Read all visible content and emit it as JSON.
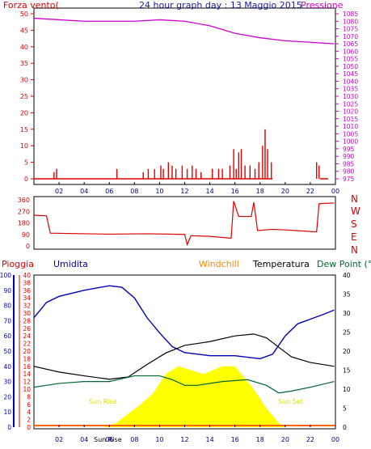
{
  "header": {
    "left_label": "Forza vento(",
    "title": "24 hour graph day : 13 Maggio 2015",
    "right_label": "Pressione"
  },
  "colors": {
    "wind": "#dd0000",
    "pressure": "#cc00cc",
    "humidity": "#0000bb",
    "temperature": "#000000",
    "dewpoint": "#006633",
    "windchill": "#ff8800",
    "sun": "#ffff00",
    "rain_axis": "#dd0000"
  },
  "chart_data": [
    {
      "type": "bar",
      "name": "wind_pressure",
      "title": "24 hour graph day : 13 Maggio 2015",
      "xlabel": "",
      "x_ticks": [
        "02",
        "04",
        "06",
        "08",
        "10",
        "12",
        "14",
        "16",
        "18",
        "20",
        "22",
        "00"
      ],
      "wind_axis_label": "Forza vento(",
      "wind_ylim": [
        0,
        50
      ],
      "wind_ticks": [
        "0",
        "5",
        "10",
        "15",
        "20",
        "25",
        "30",
        "35",
        "40",
        "45",
        "50"
      ],
      "pressure_axis_label": "Pressione",
      "pressure_ylim": [
        975,
        1085
      ],
      "pressure_ticks": [
        "975",
        "980",
        "985",
        "990",
        "995",
        "1000",
        "1005",
        "1010",
        "1015",
        "1020",
        "1025",
        "1030",
        "1035",
        "1040",
        "1045",
        "1050",
        "1055",
        "1060",
        "1065",
        "1070",
        "1075",
        "1080",
        "1085"
      ],
      "wind_gusts": [
        {
          "hour": 1.6,
          "value": 2
        },
        {
          "hour": 1.8,
          "value": 3
        },
        {
          "hour": 6.6,
          "value": 3
        },
        {
          "hour": 8.7,
          "value": 2
        },
        {
          "hour": 9.1,
          "value": 3
        },
        {
          "hour": 9.6,
          "value": 3
        },
        {
          "hour": 10.1,
          "value": 4
        },
        {
          "hour": 10.3,
          "value": 3
        },
        {
          "hour": 10.7,
          "value": 5
        },
        {
          "hour": 11.0,
          "value": 4
        },
        {
          "hour": 11.3,
          "value": 3
        },
        {
          "hour": 11.8,
          "value": 4
        },
        {
          "hour": 12.2,
          "value": 3
        },
        {
          "hour": 12.6,
          "value": 4
        },
        {
          "hour": 12.9,
          "value": 3
        },
        {
          "hour": 13.3,
          "value": 2
        },
        {
          "hour": 14.2,
          "value": 3
        },
        {
          "hour": 14.7,
          "value": 3
        },
        {
          "hour": 15.0,
          "value": 3
        },
        {
          "hour": 15.6,
          "value": 4
        },
        {
          "hour": 15.9,
          "value": 9
        },
        {
          "hour": 16.1,
          "value": 3
        },
        {
          "hour": 16.3,
          "value": 8
        },
        {
          "hour": 16.5,
          "value": 9
        },
        {
          "hour": 16.8,
          "value": 4
        },
        {
          "hour": 17.2,
          "value": 4
        },
        {
          "hour": 17.6,
          "value": 3
        },
        {
          "hour": 17.9,
          "value": 5
        },
        {
          "hour": 18.2,
          "value": 10
        },
        {
          "hour": 18.4,
          "value": 15
        },
        {
          "hour": 18.6,
          "value": 9
        },
        {
          "hour": 18.9,
          "value": 5
        },
        {
          "hour": 22.5,
          "value": 5
        },
        {
          "hour": 22.7,
          "value": 4
        }
      ],
      "pressure_series": [
        {
          "hour": 0.0,
          "value": 1082
        },
        {
          "hour": 2.0,
          "value": 1081
        },
        {
          "hour": 4.0,
          "value": 1080
        },
        {
          "hour": 6.0,
          "value": 1080
        },
        {
          "hour": 8.0,
          "value": 1080
        },
        {
          "hour": 10.0,
          "value": 1081
        },
        {
          "hour": 12.0,
          "value": 1080
        },
        {
          "hour": 14.0,
          "value": 1077
        },
        {
          "hour": 16.0,
          "value": 1072
        },
        {
          "hour": 18.0,
          "value": 1069
        },
        {
          "hour": 20.0,
          "value": 1067
        },
        {
          "hour": 22.0,
          "value": 1066
        },
        {
          "hour": 23.9,
          "value": 1065
        }
      ]
    },
    {
      "type": "line",
      "name": "wind_direction",
      "ylim": [
        0,
        360
      ],
      "y_ticks": [
        "0",
        "90",
        "180",
        "270",
        "360"
      ],
      "compass_labels": [
        "N",
        "W",
        "S",
        "E",
        "N"
      ],
      "series": [
        {
          "hour": 0.0,
          "value": 240
        },
        {
          "hour": 1.0,
          "value": 235
        },
        {
          "hour": 1.3,
          "value": 100
        },
        {
          "hour": 6.0,
          "value": 92
        },
        {
          "hour": 9.0,
          "value": 95
        },
        {
          "hour": 12.0,
          "value": 90
        },
        {
          "hour": 12.2,
          "value": 10
        },
        {
          "hour": 12.5,
          "value": 80
        },
        {
          "hour": 14.0,
          "value": 75
        },
        {
          "hour": 15.7,
          "value": 60
        },
        {
          "hour": 15.9,
          "value": 350
        },
        {
          "hour": 16.3,
          "value": 230
        },
        {
          "hour": 17.3,
          "value": 230
        },
        {
          "hour": 17.5,
          "value": 340
        },
        {
          "hour": 17.8,
          "value": 120
        },
        {
          "hour": 19.0,
          "value": 130
        },
        {
          "hour": 20.0,
          "value": 125
        },
        {
          "hour": 22.5,
          "value": 110
        },
        {
          "hour": 22.7,
          "value": 330
        },
        {
          "hour": 23.9,
          "value": 335
        }
      ]
    },
    {
      "type": "line",
      "name": "temperature_humidity",
      "left_labels": [
        "Pioggia",
        "Umidita"
      ],
      "legend": [
        "Windchill",
        "Temperatura",
        "Dew Point (°C"
      ],
      "rain_ticks": [
        "0",
        "2",
        "4",
        "6",
        "8",
        "10",
        "12",
        "14",
        "16",
        "18",
        "20",
        "22",
        "24",
        "26",
        "28",
        "30",
        "32",
        "34",
        "36",
        "38",
        "40"
      ],
      "humidity_ticks": [
        "0",
        "10",
        "20",
        "30",
        "40",
        "50",
        "60",
        "70",
        "80",
        "90",
        "100"
      ],
      "temp_ticks": [
        "0",
        "5",
        "10",
        "15",
        "20",
        "25",
        "30",
        "35",
        "40"
      ],
      "temp_ylim": [
        0,
        40
      ],
      "x_ticks": [
        "02",
        "04",
        "06",
        "08",
        "10",
        "12",
        "14",
        "16",
        "18",
        "20",
        "22",
        "00"
      ],
      "sun_rise_label": "Sun Rise",
      "sun_set_label": "Sun Set",
      "sun_rise_x_label": "Sun Rise",
      "humidity": [
        {
          "hour": 0.0,
          "value": 72
        },
        {
          "hour": 1.0,
          "value": 82
        },
        {
          "hour": 2.0,
          "value": 86
        },
        {
          "hour": 4.0,
          "value": 90
        },
        {
          "hour": 6.0,
          "value": 93
        },
        {
          "hour": 7.0,
          "value": 92
        },
        {
          "hour": 8.0,
          "value": 85
        },
        {
          "hour": 9.0,
          "value": 72
        },
        {
          "hour": 10.0,
          "value": 62
        },
        {
          "hour": 11.0,
          "value": 53
        },
        {
          "hour": 12.0,
          "value": 49
        },
        {
          "hour": 14.0,
          "value": 47
        },
        {
          "hour": 16.0,
          "value": 47
        },
        {
          "hour": 18.0,
          "value": 45
        },
        {
          "hour": 19.0,
          "value": 48
        },
        {
          "hour": 20.0,
          "value": 60
        },
        {
          "hour": 21.0,
          "value": 68
        },
        {
          "hour": 22.0,
          "value": 71
        },
        {
          "hour": 23.0,
          "value": 74
        },
        {
          "hour": 23.9,
          "value": 77
        }
      ],
      "temperature": [
        {
          "hour": 0.0,
          "value": 16
        },
        {
          "hour": 2.0,
          "value": 14.5
        },
        {
          "hour": 4.0,
          "value": 13.5
        },
        {
          "hour": 6.0,
          "value": 12.6
        },
        {
          "hour": 7.5,
          "value": 13.2
        },
        {
          "hour": 9.0,
          "value": 16.5
        },
        {
          "hour": 10.5,
          "value": 19.5
        },
        {
          "hour": 12.0,
          "value": 21.5
        },
        {
          "hour": 14.0,
          "value": 22.5
        },
        {
          "hour": 16.0,
          "value": 24
        },
        {
          "hour": 17.5,
          "value": 24.5
        },
        {
          "hour": 18.5,
          "value": 23.5
        },
        {
          "hour": 19.5,
          "value": 21
        },
        {
          "hour": 20.5,
          "value": 18.5
        },
        {
          "hour": 22.0,
          "value": 17
        },
        {
          "hour": 23.9,
          "value": 16
        }
      ],
      "dewpoint": [
        {
          "hour": 0.0,
          "value": 10.5
        },
        {
          "hour": 2.0,
          "value": 11.5
        },
        {
          "hour": 4.0,
          "value": 12
        },
        {
          "hour": 6.0,
          "value": 12
        },
        {
          "hour": 8.0,
          "value": 13.5
        },
        {
          "hour": 10.0,
          "value": 13.5
        },
        {
          "hour": 11.0,
          "value": 12.5
        },
        {
          "hour": 12.0,
          "value": 11
        },
        {
          "hour": 13.0,
          "value": 11
        },
        {
          "hour": 15.0,
          "value": 12
        },
        {
          "hour": 17.0,
          "value": 12.5
        },
        {
          "hour": 18.5,
          "value": 11
        },
        {
          "hour": 19.5,
          "value": 9
        },
        {
          "hour": 20.5,
          "value": 9.5
        },
        {
          "hour": 22.0,
          "value": 10.5
        },
        {
          "hour": 23.9,
          "value": 12
        }
      ],
      "solar": [
        {
          "hour": 0.0,
          "value": 0
        },
        {
          "hour": 5.5,
          "value": 0
        },
        {
          "hour": 6.5,
          "value": 1
        },
        {
          "hour": 7.5,
          "value": 3.5
        },
        {
          "hour": 8.5,
          "value": 6
        },
        {
          "hour": 9.5,
          "value": 9
        },
        {
          "hour": 10.5,
          "value": 14
        },
        {
          "hour": 11.5,
          "value": 16
        },
        {
          "hour": 12.5,
          "value": 15
        },
        {
          "hour": 13.5,
          "value": 14
        },
        {
          "hour": 15.0,
          "value": 16
        },
        {
          "hour": 16.0,
          "value": 16
        },
        {
          "hour": 16.5,
          "value": 14
        },
        {
          "hour": 17.5,
          "value": 10
        },
        {
          "hour": 18.5,
          "value": 5
        },
        {
          "hour": 19.5,
          "value": 1
        },
        {
          "hour": 20.0,
          "value": 0
        },
        {
          "hour": 23.9,
          "value": 0
        }
      ]
    }
  ]
}
